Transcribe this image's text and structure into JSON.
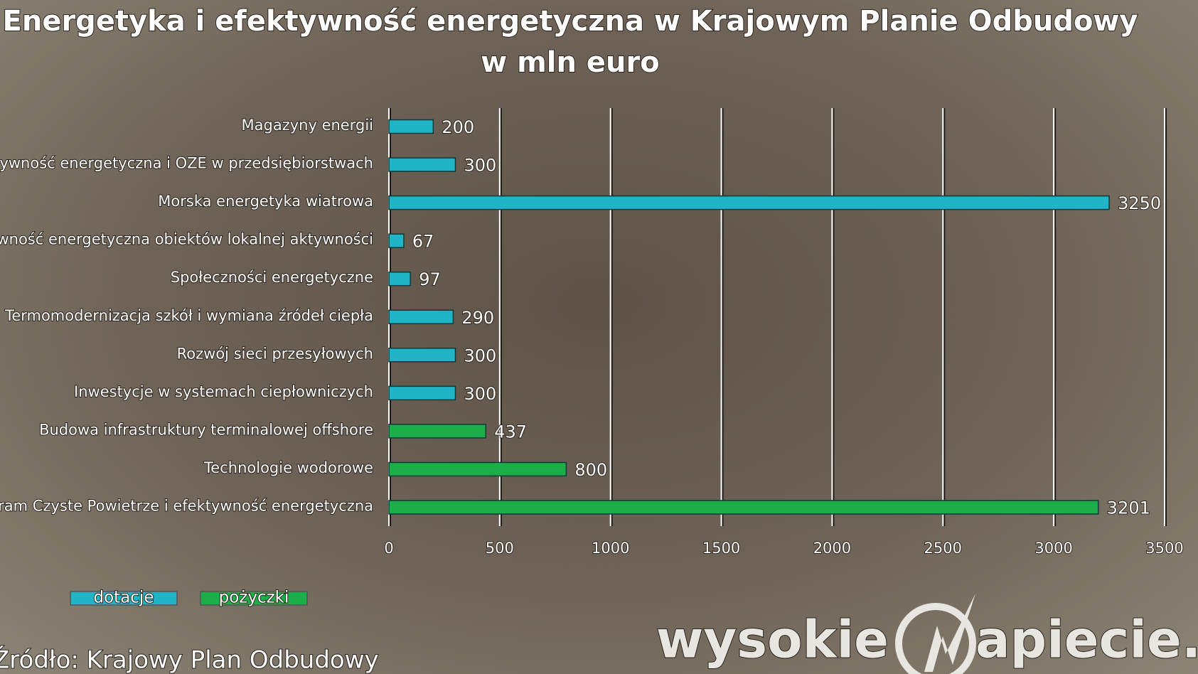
{
  "chart_data": {
    "type": "bar",
    "orientation": "horizontal",
    "title": "Energetyka i efektywność energetyczna w Krajowym Planie Odbudowy",
    "subtitle": "w mln euro",
    "categories": [
      "Magazyny energii",
      "Efektywność energetyczna i OZE w przedsiębiorstwach",
      "Morska energetyka wiatrowa",
      "Efektywność energetyczna obiektów lokalnej aktywności",
      "Społeczności energetyczne",
      "Termomodernizacja szkół i wymiana źródeł ciepła",
      "Rozwój sieci przesyłowych",
      "Inwestycje w systemach ciepłowniczych",
      "Budowa infrastruktury terminalowej offshore",
      "Technologie wodorowe",
      "Program Czyste Powietrze i efektywność energetyczna"
    ],
    "series": [
      {
        "name": "dotacje",
        "color": "#1fb4c6",
        "values": [
          200,
          300,
          3250,
          67,
          97,
          290,
          300,
          300,
          null,
          null,
          null
        ]
      },
      {
        "name": "pożyczki",
        "color": "#1cae48",
        "values": [
          null,
          null,
          null,
          null,
          null,
          null,
          null,
          null,
          437,
          800,
          3201
        ]
      }
    ],
    "xlim": [
      0,
      3500
    ],
    "xticks": [
      0,
      500,
      1000,
      1500,
      2000,
      2500,
      3000,
      3500
    ],
    "grid": true,
    "legend": "bottom-left",
    "source": "Źródło: Krajowy Plan Odbudowy",
    "logo": {
      "left": "wysokie",
      "right": "apiecie.pl"
    }
  }
}
